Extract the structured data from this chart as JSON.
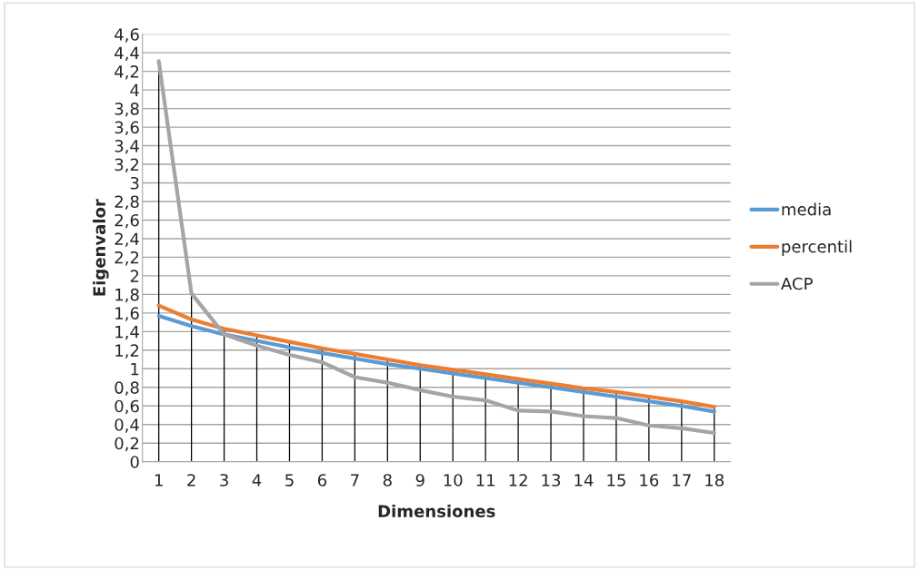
{
  "chart_data": {
    "type": "line",
    "xlabel": "Dimensiones",
    "ylabel": "Eigenvalor",
    "categories": [
      "1",
      "2",
      "3",
      "4",
      "5",
      "6",
      "7",
      "8",
      "9",
      "10",
      "11",
      "12",
      "13",
      "14",
      "15",
      "16",
      "17",
      "18"
    ],
    "series": [
      {
        "name": "media",
        "color": "#5b9bd5",
        "values": [
          1.57,
          1.46,
          1.37,
          1.3,
          1.23,
          1.17,
          1.11,
          1.05,
          1.0,
          0.95,
          0.9,
          0.85,
          0.8,
          0.75,
          0.7,
          0.65,
          0.6,
          0.54
        ]
      },
      {
        "name": "percentil",
        "color": "#ed7d31",
        "values": [
          1.68,
          1.53,
          1.43,
          1.36,
          1.29,
          1.22,
          1.16,
          1.1,
          1.04,
          0.99,
          0.94,
          0.89,
          0.84,
          0.79,
          0.75,
          0.7,
          0.65,
          0.59
        ],
        "errors": [
          null,
          null,
          [
            1.43,
            0
          ],
          [
            1.36,
            0
          ],
          [
            1.29,
            0
          ],
          [
            1.22,
            0
          ],
          [
            1.16,
            0
          ],
          [
            1.1,
            0
          ],
          [
            1.04,
            0
          ],
          [
            0.99,
            0
          ],
          [
            0.94,
            0
          ],
          [
            0.89,
            0
          ],
          [
            0.84,
            0
          ],
          [
            0.79,
            0
          ],
          [
            0.75,
            0
          ],
          [
            0.7,
            0
          ],
          [
            0.65,
            0
          ],
          [
            0.59,
            0
          ]
        ]
      },
      {
        "name": "ACP",
        "color": "#a5a5a5",
        "values": [
          4.31,
          1.81,
          1.37,
          1.25,
          1.15,
          1.07,
          0.91,
          0.85,
          0.77,
          0.7,
          0.66,
          0.55,
          0.54,
          0.49,
          0.47,
          0.39,
          0.36,
          0.31
        ],
        "errors": [
          [
            4.31,
            0
          ],
          [
            1.81,
            0
          ],
          null,
          null,
          null,
          null,
          null,
          null,
          null,
          null,
          null,
          null,
          null,
          null,
          null,
          null,
          null,
          null
        ]
      }
    ],
    "ylim": [
      0,
      4.6
    ],
    "yticks": [
      {
        "value": 0,
        "label": "0"
      },
      {
        "value": 0.2,
        "label": "0,2"
      },
      {
        "value": 0.4,
        "label": "0,4"
      },
      {
        "value": 0.6,
        "label": "0,6"
      },
      {
        "value": 0.8,
        "label": "0,8"
      },
      {
        "value": 1,
        "label": "1"
      },
      {
        "value": 1.2,
        "label": "1,2"
      },
      {
        "value": 1.4,
        "label": "1,4"
      },
      {
        "value": 1.6,
        "label": "1,6"
      },
      {
        "value": 1.8,
        "label": "1,8"
      },
      {
        "value": 2,
        "label": "2"
      },
      {
        "value": 2.2,
        "label": "2,2"
      },
      {
        "value": 2.4,
        "label": "2,4"
      },
      {
        "value": 2.6,
        "label": "2,6"
      },
      {
        "value": 2.8,
        "label": "2,8"
      },
      {
        "value": 3,
        "label": "3"
      },
      {
        "value": 3.2,
        "label": "3,2"
      },
      {
        "value": 3.4,
        "label": "3,4"
      },
      {
        "value": 3.6,
        "label": "3,6"
      },
      {
        "value": 3.8,
        "label": "3,8"
      },
      {
        "value": 4,
        "label": "4"
      },
      {
        "value": 4.2,
        "label": "4,2"
      },
      {
        "value": 4.4,
        "label": "4,4"
      },
      {
        "value": 4.6,
        "label": "4,6"
      }
    ],
    "grid": "y",
    "legend": "right",
    "marker": "none",
    "line_style": "solid"
  }
}
